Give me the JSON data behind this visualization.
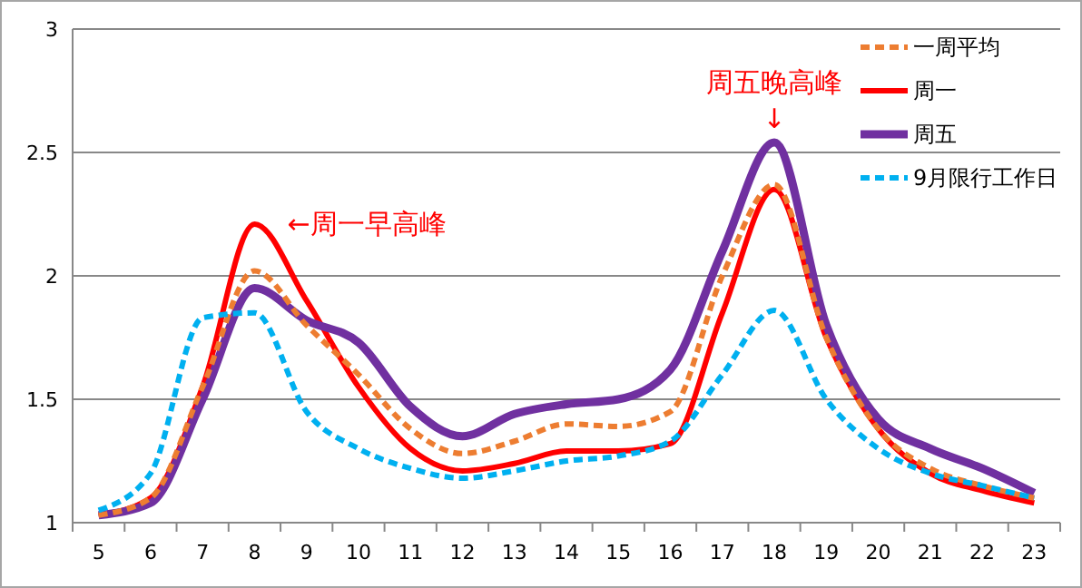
{
  "chart_data": {
    "type": "line",
    "categories": [
      "5",
      "6",
      "7",
      "8",
      "9",
      "10",
      "11",
      "12",
      "13",
      "14",
      "15",
      "16",
      "17",
      "18",
      "19",
      "20",
      "21",
      "22",
      "23"
    ],
    "ylim": [
      1,
      3
    ],
    "yticks": [
      1,
      1.5,
      2,
      2.5,
      3
    ],
    "grid": "y",
    "legend": "top right",
    "marker": "none",
    "series": [
      {
        "name": "一周平均",
        "color": "#ed7d31",
        "line_style": "dashed",
        "values": [
          1.03,
          1.1,
          1.55,
          2.02,
          1.8,
          1.6,
          1.38,
          1.28,
          1.33,
          1.4,
          1.39,
          1.45,
          2.0,
          2.37,
          1.75,
          1.38,
          1.22,
          1.15,
          1.1
        ]
      },
      {
        "name": "周一",
        "color": "#ff0000",
        "line_style": "solid",
        "values": [
          1.03,
          1.1,
          1.55,
          2.21,
          1.9,
          1.55,
          1.3,
          1.21,
          1.24,
          1.29,
          1.29,
          1.32,
          1.85,
          2.35,
          1.75,
          1.38,
          1.2,
          1.13,
          1.08
        ]
      },
      {
        "name": "周五",
        "color": "#7030a0",
        "line_style": "solid",
        "values": [
          1.03,
          1.08,
          1.5,
          1.95,
          1.82,
          1.73,
          1.47,
          1.35,
          1.44,
          1.48,
          1.5,
          1.62,
          2.1,
          2.54,
          1.8,
          1.42,
          1.3,
          1.22,
          1.12
        ]
      },
      {
        "name": "9月限行工作日",
        "color": "#00b0f0",
        "line_style": "dashed",
        "values": [
          1.05,
          1.2,
          1.83,
          1.85,
          1.45,
          1.3,
          1.22,
          1.18,
          1.21,
          1.25,
          1.27,
          1.33,
          1.6,
          1.86,
          1.5,
          1.3,
          1.2,
          1.15,
          1.1
        ]
      }
    ],
    "annotations": [
      {
        "text": "←周一早高峰",
        "x": "8",
        "y": 2.21
      },
      {
        "text": "周五晚高峰\n↓",
        "x": "18",
        "y": 2.54
      }
    ]
  }
}
